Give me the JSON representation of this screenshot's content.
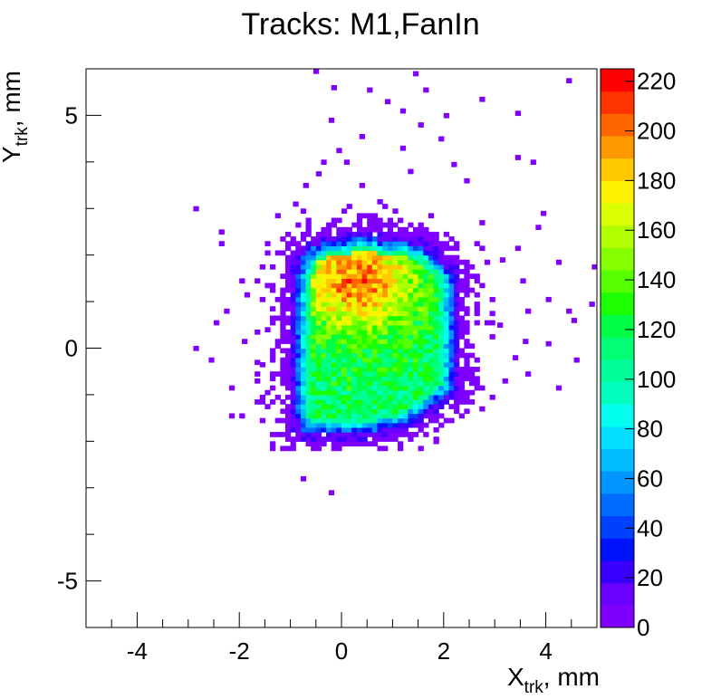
{
  "chart_data": {
    "type": "heatmap",
    "title": "Tracks: M1,FanIn",
    "xlabel": {
      "main": "X",
      "sub": "trk",
      "unit": ", mm"
    },
    "ylabel": {
      "main": "Y",
      "sub": "trk",
      "unit": ", mm"
    },
    "xlim": [
      -5,
      5
    ],
    "ylim": [
      -6,
      6
    ],
    "x_ticks": [
      -4,
      -2,
      0,
      2,
      4
    ],
    "y_ticks": [
      -5,
      0,
      5
    ],
    "x_tick_labels": [
      "-4",
      "-2",
      "0",
      "2",
      "4"
    ],
    "y_tick_labels": [
      "-5",
      "0",
      "5"
    ],
    "zlim": [
      0,
      225
    ],
    "color_ticks": [
      0,
      20,
      40,
      60,
      80,
      100,
      120,
      140,
      160,
      180,
      200,
      220
    ],
    "color_tick_labels": [
      "0",
      "20",
      "40",
      "60",
      "80",
      "100",
      "120",
      "140",
      "160",
      "180",
      "200",
      "220"
    ],
    "color_palette": [
      "#7f00ff",
      "#6a00ff",
      "#3a00ff",
      "#0011ff",
      "#0040ff",
      "#006cff",
      "#0095ff",
      "#00bbff",
      "#00dfff",
      "#00ffee",
      "#00ffbf",
      "#00ff9a",
      "#00ff74",
      "#00ff44",
      "#1cff00",
      "#55ff00",
      "#86ff00",
      "#b2ff00",
      "#d9ff00",
      "#fff200",
      "#ffc800",
      "#ff9900",
      "#ff6600",
      "#ff3300",
      "#ff0000"
    ],
    "bin_width": 0.1,
    "core_region": {
      "polygon": [
        [
          -0.8,
          2.0
        ],
        [
          -0.4,
          2.25
        ],
        [
          0.4,
          2.4
        ],
        [
          1.6,
          2.2
        ],
        [
          2.2,
          1.6
        ],
        [
          2.2,
          -0.9
        ],
        [
          1.3,
          -1.6
        ],
        [
          0.5,
          -1.8
        ],
        [
          -0.8,
          -1.8
        ],
        [
          -0.9,
          -1.2
        ],
        [
          -0.85,
          1.6
        ]
      ],
      "peak_center": [
        0.3,
        1.5
      ],
      "peak_value": 200,
      "base_value": 115
    },
    "halo_region": {
      "x_range": [
        -2.3,
        3.0
      ],
      "y_range": [
        -2.2,
        3.2
      ]
    },
    "scattered_points": [
      [
        -0.55,
        5.9
      ],
      [
        1.4,
        5.85
      ],
      [
        4.4,
        5.7
      ],
      [
        -0.2,
        5.55
      ],
      [
        0.5,
        5.5
      ],
      [
        1.6,
        5.5
      ],
      [
        0.85,
        5.25
      ],
      [
        2.7,
        5.3
      ],
      [
        1.15,
        5.05
      ],
      [
        3.4,
        5.0
      ],
      [
        -0.25,
        4.85
      ],
      [
        2.0,
        4.95
      ],
      [
        1.5,
        4.75
      ],
      [
        0.35,
        4.5
      ],
      [
        1.9,
        4.45
      ],
      [
        -0.1,
        4.2
      ],
      [
        1.15,
        4.25
      ],
      [
        3.4,
        4.05
      ],
      [
        -0.4,
        3.95
      ],
      [
        0.05,
        3.95
      ],
      [
        2.15,
        3.9
      ],
      [
        3.7,
        3.95
      ],
      [
        -0.5,
        3.7
      ],
      [
        1.3,
        3.75
      ],
      [
        -2.9,
        2.95
      ],
      [
        -0.75,
        3.45
      ],
      [
        0.35,
        3.45
      ],
      [
        2.4,
        3.55
      ],
      [
        -1.3,
        2.8
      ],
      [
        3.9,
        2.85
      ],
      [
        -0.95,
        3.05
      ],
      [
        2.7,
        2.65
      ],
      [
        -2.4,
        2.45
      ],
      [
        3.8,
        2.55
      ],
      [
        -2.4,
        2.2
      ],
      [
        -1.1,
        2.4
      ],
      [
        3.4,
        2.1
      ],
      [
        4.2,
        1.8
      ],
      [
        -1.6,
        1.7
      ],
      [
        3.1,
        1.85
      ],
      [
        4.9,
        1.7
      ],
      [
        -2.0,
        1.4
      ],
      [
        3.5,
        1.4
      ],
      [
        -1.9,
        1.1
      ],
      [
        4.0,
        1.0
      ],
      [
        4.85,
        0.9
      ],
      [
        -2.3,
        0.75
      ],
      [
        3.6,
        0.75
      ],
      [
        4.4,
        0.75
      ],
      [
        -2.5,
        0.5
      ],
      [
        -1.5,
        0.35
      ],
      [
        3.05,
        0.45
      ],
      [
        4.5,
        0.55
      ],
      [
        -2.9,
        -0.05
      ],
      [
        -1.95,
        0.1
      ],
      [
        3.55,
        0.1
      ],
      [
        4.0,
        0.05
      ],
      [
        -2.6,
        -0.3
      ],
      [
        -1.7,
        -0.35
      ],
      [
        3.35,
        -0.25
      ],
      [
        4.55,
        -0.3
      ],
      [
        -1.7,
        -0.75
      ],
      [
        3.15,
        -0.75
      ],
      [
        -2.2,
        -0.9
      ],
      [
        3.6,
        -0.6
      ],
      [
        4.2,
        -0.9
      ],
      [
        -1.6,
        -1.2
      ],
      [
        2.7,
        -1.35
      ],
      [
        -2.2,
        -1.5
      ],
      [
        -2.0,
        -1.5
      ],
      [
        2.3,
        -1.5
      ],
      [
        1.8,
        -2.05
      ],
      [
        -0.8,
        -2.85
      ],
      [
        -0.25,
        -3.15
      ]
    ],
    "grid": false,
    "legend": "none"
  }
}
